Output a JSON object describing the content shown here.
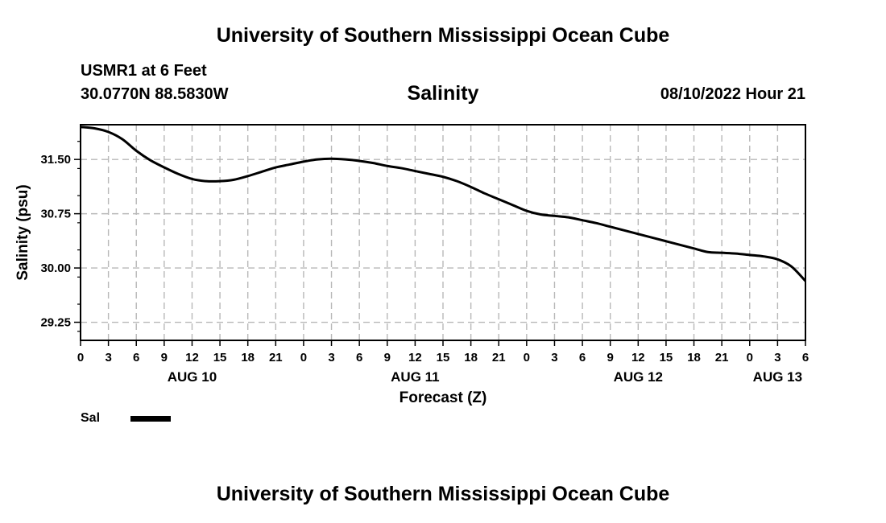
{
  "header": {
    "title": "University of Southern Mississippi Ocean Cube",
    "station": "USMR1 at 6 Feet",
    "coords": "30.0770N  88.5830W",
    "chart_title": "Salinity",
    "datetime": "08/10/2022 Hour 21"
  },
  "footer": {
    "title": "University of Southern Mississippi Ocean Cube"
  },
  "legend": {
    "label": "Sal",
    "color": "#000000"
  },
  "chart_data": {
    "type": "line",
    "title": "Salinity",
    "xlabel": "Forecast (Z)",
    "ylabel": "Salinity (psu)",
    "x_unit": "hours since AUG 10 00Z",
    "xlim": [
      0,
      78
    ],
    "ylim": [
      29.0,
      31.98
    ],
    "y_ticks": [
      29.25,
      30.0,
      30.75,
      31.5
    ],
    "y_tick_labels": [
      "29.25",
      "30.00",
      "30.75",
      "31.50"
    ],
    "x_ticks": [
      0,
      3,
      6,
      9,
      12,
      15,
      18,
      21,
      24,
      27,
      30,
      33,
      36,
      39,
      42,
      45,
      48,
      51,
      54,
      57,
      60,
      63,
      66,
      69,
      72,
      75,
      78
    ],
    "x_tick_labels": [
      "0",
      "3",
      "6",
      "9",
      "12",
      "15",
      "18",
      "21",
      "0",
      "3",
      "6",
      "9",
      "12",
      "15",
      "18",
      "21",
      "0",
      "3",
      "6",
      "9",
      "12",
      "15",
      "18",
      "21",
      "0",
      "3",
      "6"
    ],
    "day_labels": [
      {
        "x": 12,
        "label": "AUG 10"
      },
      {
        "x": 36,
        "label": "AUG 11"
      },
      {
        "x": 60,
        "label": "AUG 12"
      },
      {
        "x": 75,
        "label": "AUG 13"
      }
    ],
    "grid": true,
    "series": [
      {
        "name": "Sal",
        "color": "#000000",
        "x": [
          0,
          1.5,
          3,
          4.5,
          6,
          7.5,
          9,
          10.5,
          12,
          13.5,
          15,
          16.5,
          18,
          19.5,
          21,
          22.5,
          24,
          25.5,
          27,
          28.5,
          30,
          31.5,
          33,
          34.5,
          36,
          37.5,
          39,
          40.5,
          42,
          43.5,
          45,
          46.5,
          48,
          49.5,
          51,
          52.5,
          54,
          55.5,
          57,
          58.5,
          60,
          61.5,
          63,
          64.5,
          66,
          67.5,
          69,
          70.5,
          72,
          73.5,
          75,
          76.5,
          78
        ],
        "y": [
          31.95,
          31.93,
          31.88,
          31.78,
          31.62,
          31.49,
          31.39,
          31.3,
          31.23,
          31.2,
          31.2,
          31.22,
          31.27,
          31.33,
          31.39,
          31.43,
          31.47,
          31.5,
          31.51,
          31.5,
          31.48,
          31.45,
          31.41,
          31.38,
          31.34,
          31.3,
          31.26,
          31.2,
          31.12,
          31.03,
          30.95,
          30.87,
          30.79,
          30.74,
          30.72,
          30.7,
          30.66,
          30.62,
          30.57,
          30.52,
          30.47,
          30.42,
          30.37,
          30.32,
          30.27,
          30.22,
          30.21,
          30.2,
          30.18,
          30.16,
          30.12,
          30.02,
          29.82
        ]
      }
    ]
  }
}
